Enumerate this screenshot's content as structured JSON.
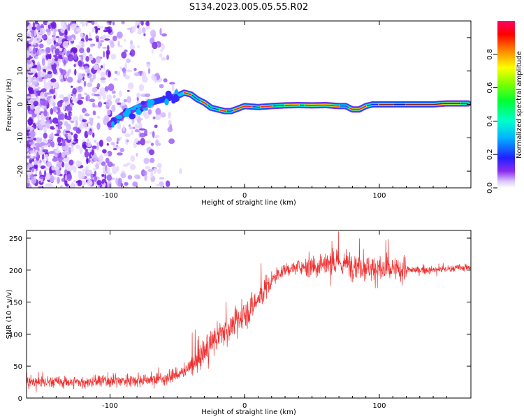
{
  "figure": {
    "title": "S134.2023.005.05.55.R02"
  },
  "chart_data": [
    {
      "type": "heatmap",
      "xlabel": "Height of straight line (km)",
      "ylabel": "Frequency (Hz)",
      "xlim": [
        -162,
        168
      ],
      "ylim": [
        -25,
        25
      ],
      "xticks": [
        -100,
        0,
        100
      ],
      "yticks": [
        -20,
        -10,
        0,
        10,
        20
      ],
      "ridge": {
        "x": [
          -100,
          -90,
          -80,
          -70,
          -60,
          -50,
          -45,
          -40,
          -35,
          -30,
          -25,
          -20,
          -15,
          -10,
          0,
          10,
          20,
          30,
          40,
          50,
          60,
          70,
          75,
          80,
          85,
          90,
          95,
          100,
          110,
          120,
          130,
          140,
          150,
          160
        ],
        "y": [
          -6,
          -3,
          -1,
          0.5,
          1.5,
          2.5,
          3.5,
          3,
          1.5,
          0.5,
          -1,
          -1.5,
          -2,
          -2,
          -0.5,
          -0.8,
          -0.5,
          -0.3,
          -0.2,
          -0.3,
          -0.2,
          -0.5,
          -0.5,
          -1.5,
          -1.5,
          -0.5,
          0,
          0,
          0,
          0,
          0,
          0,
          0.3,
          0.3
        ]
      },
      "colorbar": {
        "label": "Normalized spectral amplitude",
        "ticks": [
          0.0,
          0.2,
          0.4,
          0.6,
          0.8
        ],
        "range": [
          0,
          1
        ]
      }
    },
    {
      "type": "line",
      "xlabel": "Height of straight line (km)",
      "ylabel": "SNR (10 * v/v)",
      "xlim": [
        -162,
        168
      ],
      "ylim": [
        0,
        262
      ],
      "xticks": [
        -100,
        0,
        100
      ],
      "yticks": [
        0,
        50,
        100,
        150,
        200,
        250
      ],
      "color": "#f03030",
      "trend": {
        "x": [
          -162,
          -120,
          -80,
          -60,
          -45,
          -35,
          -25,
          -15,
          -5,
          5,
          15,
          25,
          30,
          40,
          50,
          60,
          80,
          100,
          120,
          140,
          168
        ],
        "y": [
          25,
          25,
          28,
          30,
          40,
          60,
          85,
          105,
          120,
          140,
          170,
          195,
          200,
          205,
          208,
          210,
          210,
          200,
          200,
          200,
          205
        ]
      }
    }
  ]
}
